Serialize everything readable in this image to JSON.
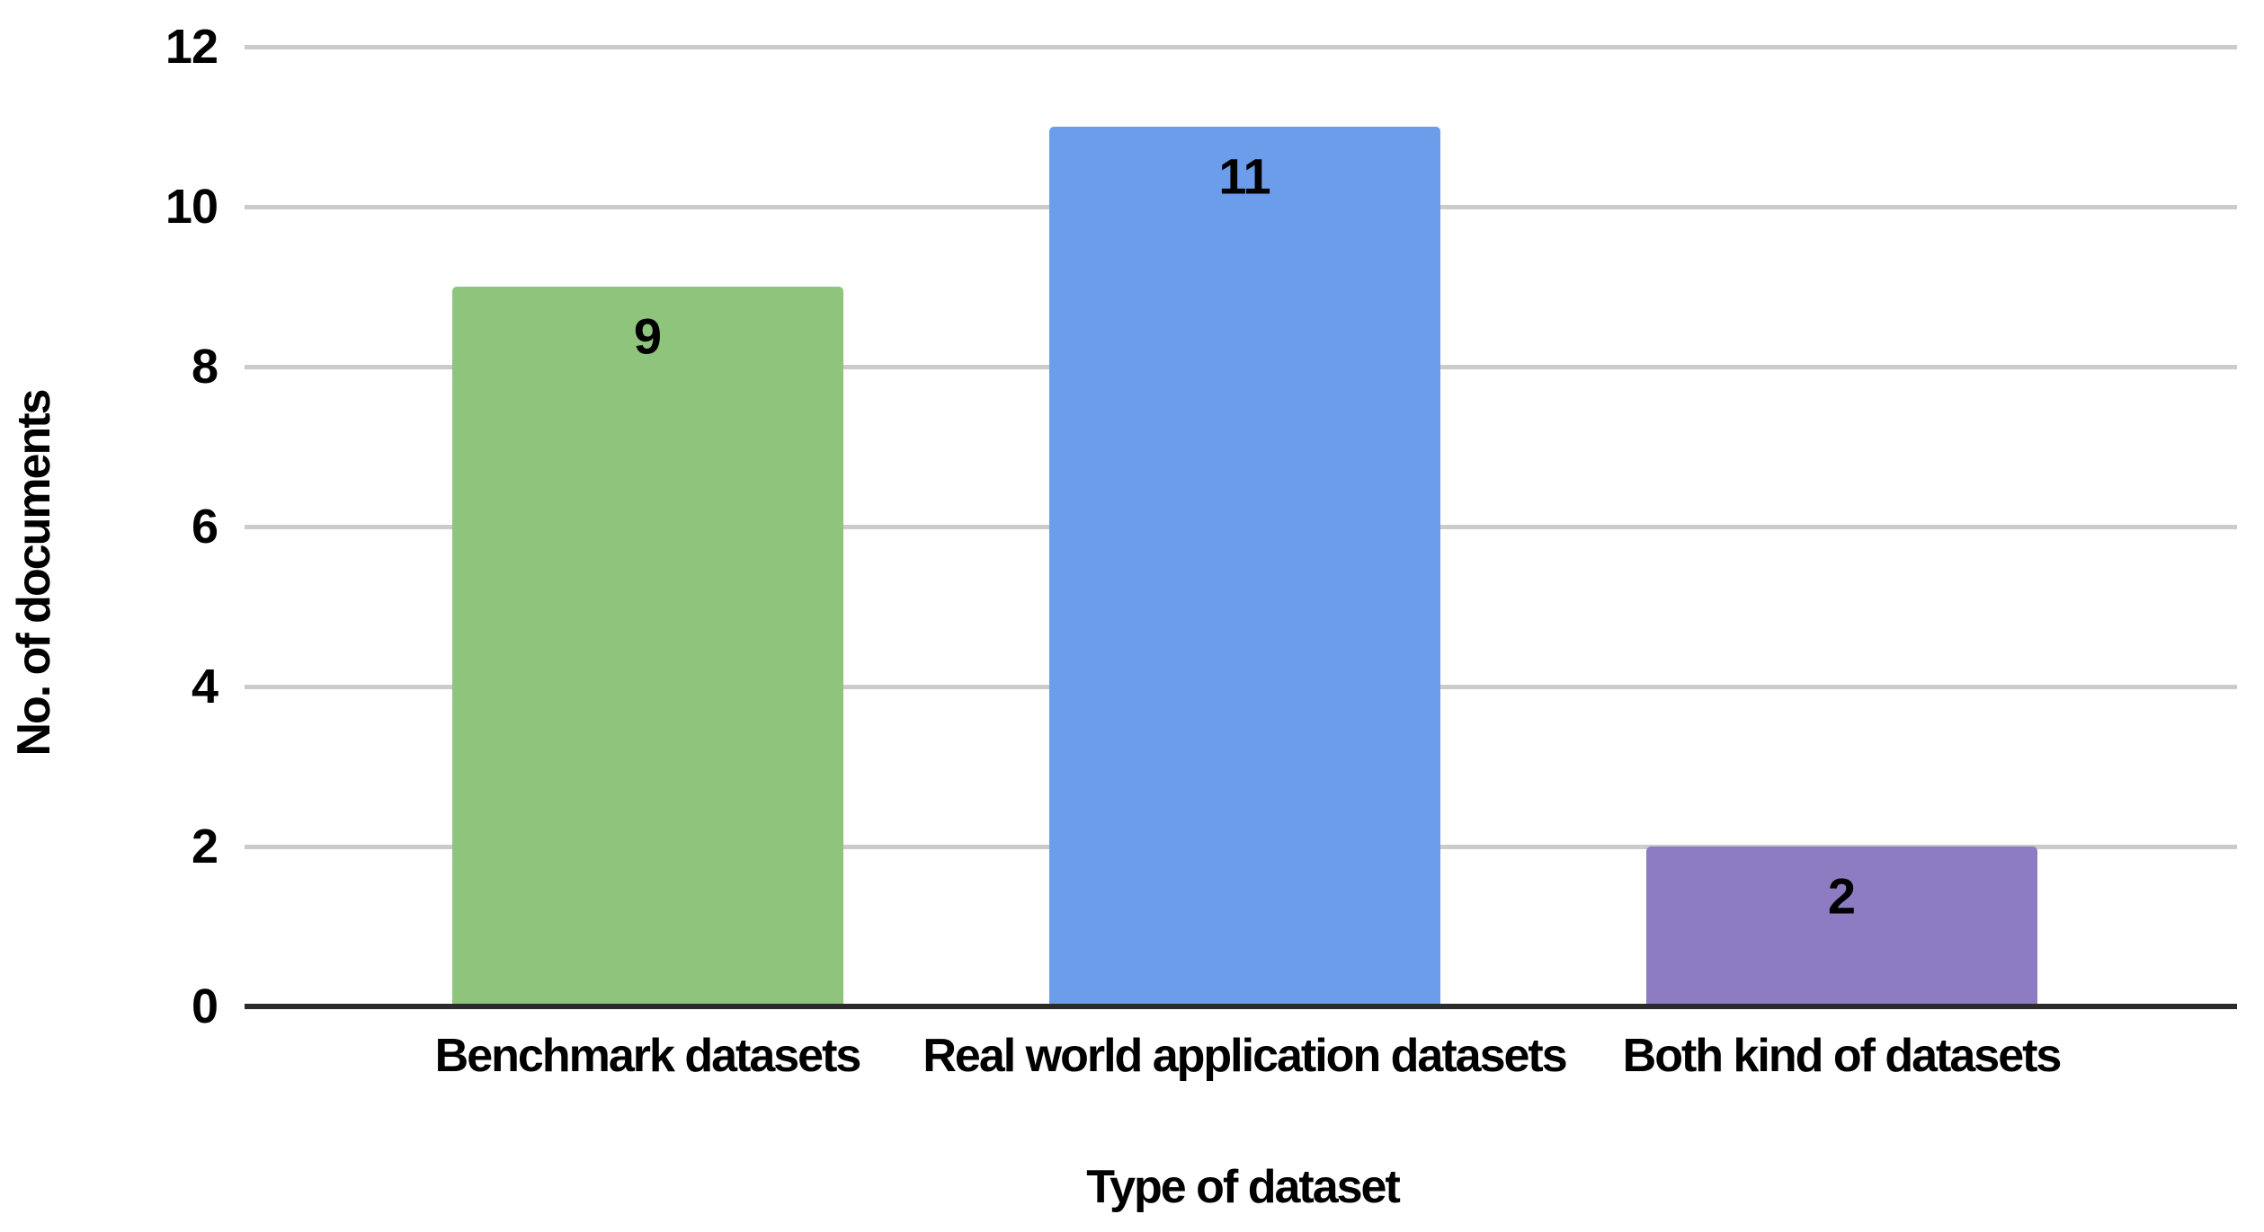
{
  "chart_data": {
    "type": "bar",
    "title": "",
    "categories": [
      "Benchmark datasets",
      "Real world application datasets",
      "Both kind of datasets"
    ],
    "values": [
      9,
      11,
      2
    ],
    "value_labels": [
      "9",
      "11",
      "2"
    ],
    "bar_colors": [
      "#8FC47D",
      "#6C9DEB",
      "#8E7CC3"
    ],
    "xlabel": "Type of dataset",
    "ylabel": "No. of documents",
    "yticks": [
      0,
      2,
      4,
      6,
      8,
      10,
      12
    ],
    "ytick_labels": [
      "0",
      "2",
      "4",
      "6",
      "8",
      "10",
      "12"
    ],
    "ylim": [
      0,
      12
    ],
    "grid": "horizontal",
    "legend_position": "none",
    "value_label_position": "inside-top",
    "colors": {
      "gridline": "#CBCBCB",
      "axis": "#2B2B2B",
      "text": "#000000",
      "background": "#FFFFFF"
    }
  }
}
